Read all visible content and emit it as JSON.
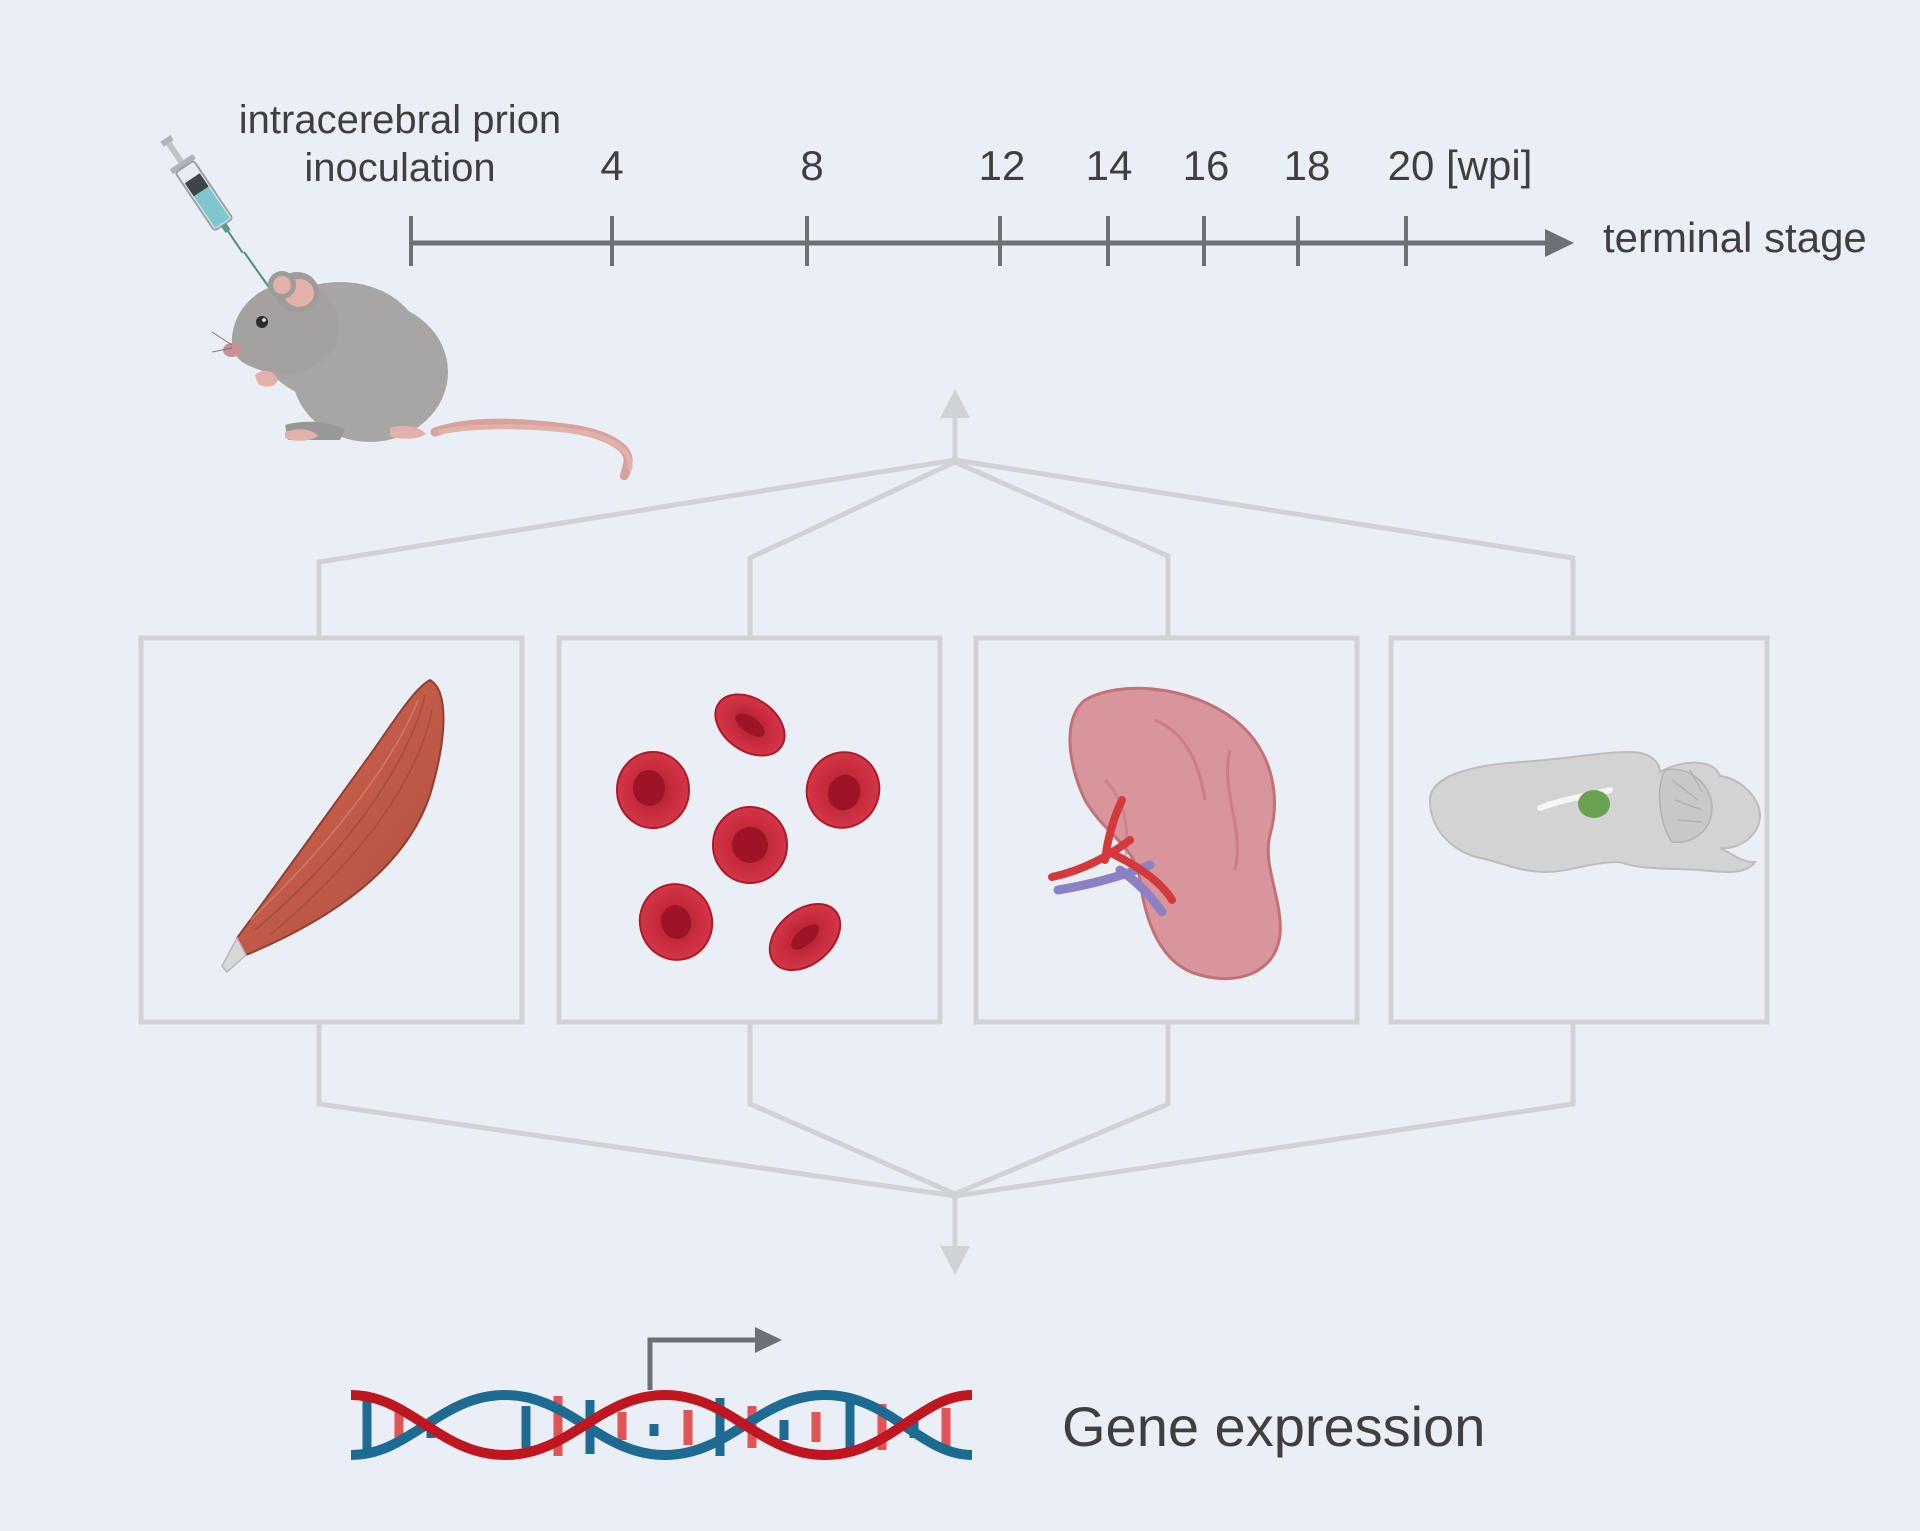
{
  "timeline": {
    "inoculation_label_line1": "intracerebral prion",
    "inoculation_label_line2": "inoculation",
    "ticks": [
      "4",
      "8",
      "12",
      "14",
      "16",
      "18",
      "20 [wpi]"
    ],
    "end_label": "terminal stage"
  },
  "output": {
    "label": "Gene expression"
  },
  "icons": [
    "mouse-icon",
    "syringe-icon",
    "muscle-icon",
    "red-blood-cells-icon",
    "kidney-icon",
    "brain-icon",
    "dna-icon"
  ],
  "colors": {
    "background": "#eaeff5",
    "axis": "#6c7176",
    "connector": "#cfd3d8",
    "dna_red": "#c0161f",
    "dna_blue": "#1d6a93"
  }
}
